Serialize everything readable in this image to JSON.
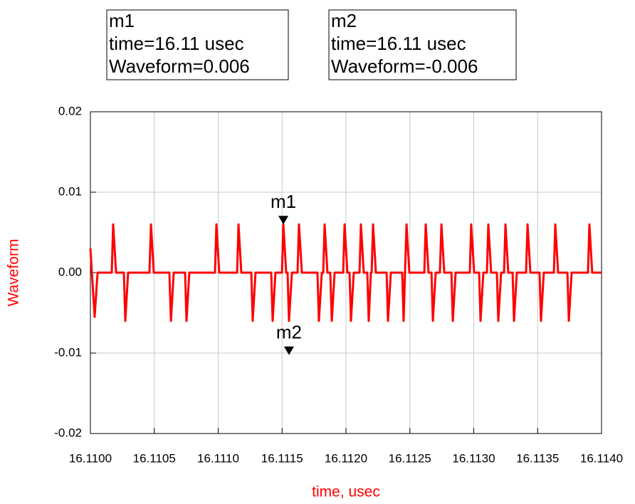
{
  "chart_data": {
    "type": "line",
    "xlabel": "time, usec",
    "ylabel": "Waveform",
    "color": "#ff0000",
    "grid": true,
    "xlim": [
      16.11,
      16.114
    ],
    "ylim": [
      -0.02,
      0.02
    ],
    "xticks": [
      {
        "value": 16.11,
        "label": "16.1100"
      },
      {
        "value": 16.1105,
        "label": "16.1105"
      },
      {
        "value": 16.111,
        "label": "16.1110"
      },
      {
        "value": 16.1115,
        "label": "16.1115"
      },
      {
        "value": 16.112,
        "label": "16.1120"
      },
      {
        "value": 16.1125,
        "label": "16.1125"
      },
      {
        "value": 16.113,
        "label": "16.1130"
      },
      {
        "value": 16.1135,
        "label": "16.1135"
      },
      {
        "value": 16.114,
        "label": "16.1140"
      }
    ],
    "yticks": [
      0.02,
      0.01,
      {
        "value": 0,
        "label": "0.00"
      },
      -0.01,
      -0.02
    ],
    "x": [
      16.11,
      16.110033,
      16.110056,
      16.110167,
      16.110178,
      16.110201,
      16.110262,
      16.110273,
      16.110295,
      16.110462,
      16.110474,
      16.110496,
      16.110618,
      16.11063,
      16.110652,
      16.110741,
      16.110752,
      16.110774,
      16.110975,
      16.110986,
      16.111008,
      16.111148,
      16.111159,
      16.111181,
      16.111259,
      16.11127,
      16.111292,
      16.111415,
      16.111426,
      16.111448,
      16.111499,
      16.11151,
      16.111532,
      16.111543,
      16.111554,
      16.111577,
      16.111621,
      16.111632,
      16.111655,
      16.111777,
      16.111788,
      16.111811,
      16.111822,
      16.111833,
      16.111855,
      16.111877,
      16.111889,
      16.111911,
      16.111978,
      16.111989,
      16.112011,
      16.112028,
      16.112039,
      16.112061,
      16.112106,
      16.112117,
      16.112139,
      16.112167,
      16.112178,
      16.112195,
      16.112201,
      16.112212,
      16.112234,
      16.112318,
      16.112329,
      16.112351,
      16.11244,
      16.112451,
      16.112462,
      16.112474,
      16.112496,
      16.112613,
      16.112624,
      16.112646,
      16.112669,
      16.11268,
      16.112702,
      16.112735,
      16.112747,
      16.112769,
      16.112825,
      16.112836,
      16.112858,
      16.112969,
      16.11298,
      16.113003,
      16.113042,
      16.113053,
      16.113075,
      16.113103,
      16.113114,
      16.113136,
      16.113181,
      16.113192,
      16.113214,
      16.113237,
      16.113248,
      16.11327,
      16.113304,
      16.113315,
      16.113337,
      16.113409,
      16.113421,
      16.113443,
      16.113515,
      16.113526,
      16.113548,
      16.113627,
      16.113638,
      16.11366,
      16.113733,
      16.113744,
      16.113766,
      16.113894,
      16.113905,
      16.113927,
      16.114
    ],
    "values": [
      0.003,
      -0.0055,
      0,
      0,
      0.006,
      0,
      0,
      -0.006,
      0,
      0,
      0.006,
      0,
      0,
      -0.006,
      0,
      0,
      -0.006,
      0,
      0,
      0.006,
      0,
      0,
      0.006,
      0,
      0,
      -0.006,
      0,
      0,
      -0.006,
      0,
      0,
      0.006,
      0,
      0,
      -0.006,
      0,
      0,
      0.006,
      0,
      0,
      -0.006,
      0,
      0,
      0.006,
      0,
      0,
      -0.006,
      0,
      0,
      0.006,
      0,
      0,
      -0.006,
      0,
      0,
      0.006,
      0,
      0,
      -0.006,
      0,
      0,
      0.006,
      0,
      0,
      -0.006,
      0,
      0,
      -0.006,
      0,
      0.006,
      0,
      0,
      0.006,
      0,
      0,
      -0.006,
      0,
      0,
      0.006,
      0,
      0,
      -0.006,
      0,
      0,
      0.006,
      0,
      0,
      -0.006,
      0,
      0,
      0.006,
      0,
      0,
      -0.006,
      0,
      0,
      0.006,
      0,
      0,
      -0.006,
      0,
      0,
      0.006,
      0,
      0,
      -0.006,
      0,
      0,
      0.006,
      0,
      0,
      -0.006,
      0,
      0,
      0.006,
      0,
      0
    ],
    "markers": [
      {
        "name": "m1",
        "x": 16.11151,
        "y": 0.006,
        "time_label": "time=16.11 usec",
        "value_label": "Waveform=0.006"
      },
      {
        "name": "m2",
        "x": 16.111554,
        "y": -0.006,
        "time_label": "time=16.11 usec",
        "value_label": "Waveform=-0.006"
      }
    ]
  }
}
